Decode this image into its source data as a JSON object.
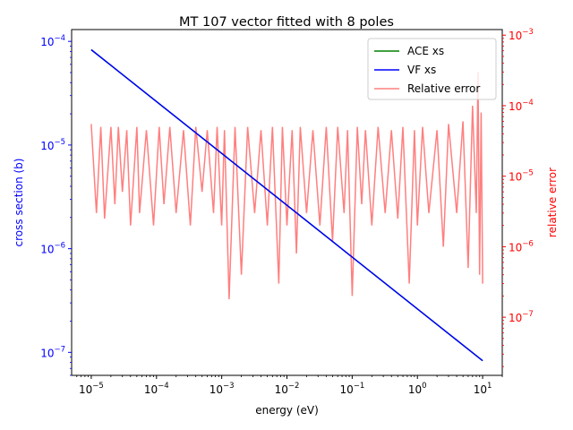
{
  "chart_data": {
    "type": "line",
    "title": "MT 107 vector fitted with 8 poles",
    "xlabel": "energy (eV)",
    "ylabel_left": "cross section (b)",
    "ylabel_right": "relative error",
    "x_scale": "log",
    "y_left_scale": "log",
    "y_right_scale": "log",
    "xlim": [
      5e-06,
      20
    ],
    "ylim_left": [
      6e-08,
      0.00013
    ],
    "ylim_right": [
      1.5e-08,
      0.0012
    ],
    "grid": false,
    "legend_position": "top-right",
    "x_ticks": [
      {
        "value": 1e-05,
        "base": "10",
        "exp": "−5"
      },
      {
        "value": 0.0001,
        "base": "10",
        "exp": "−4"
      },
      {
        "value": 0.001,
        "base": "10",
        "exp": "−3"
      },
      {
        "value": 0.01,
        "base": "10",
        "exp": "−2"
      },
      {
        "value": 0.1,
        "base": "10",
        "exp": "−1"
      },
      {
        "value": 1,
        "base": "10",
        "exp": "0"
      },
      {
        "value": 10,
        "base": "10",
        "exp": "1"
      }
    ],
    "y_left_ticks": [
      {
        "value": 1e-07,
        "base": "10",
        "exp": "−7"
      },
      {
        "value": 1e-06,
        "base": "10",
        "exp": "−6"
      },
      {
        "value": 1e-05,
        "base": "10",
        "exp": "−5"
      },
      {
        "value": 0.0001,
        "base": "10",
        "exp": "−4"
      }
    ],
    "y_right_ticks": [
      {
        "value": 1e-07,
        "base": "10",
        "exp": "−7"
      },
      {
        "value": 1e-06,
        "base": "10",
        "exp": "−6"
      },
      {
        "value": 1e-05,
        "base": "10",
        "exp": "−5"
      },
      {
        "value": 0.0001,
        "base": "10",
        "exp": "−4"
      },
      {
        "value": 0.001,
        "base": "10",
        "exp": "−3"
      }
    ],
    "series": [
      {
        "name": "ACE xs",
        "axis": "left",
        "color": "#008000",
        "x": [
          1e-05,
          10
        ],
        "y": [
          8.3e-05,
          8.3e-08
        ]
      },
      {
        "name": "VF xs",
        "axis": "left",
        "color": "#0000ff",
        "x": [
          1e-05,
          10
        ],
        "y": [
          8.3e-05,
          8.3e-08
        ]
      },
      {
        "name": "Relative error",
        "axis": "right",
        "color": "#ff0000",
        "opacity": 0.5,
        "x": [
          1e-05,
          1.2e-05,
          1.4e-05,
          1.6e-05,
          2e-05,
          2.3e-05,
          2.6e-05,
          3e-05,
          3.5e-05,
          4e-05,
          5e-05,
          5.5e-05,
          7e-05,
          9e-05,
          0.00011,
          0.00013,
          0.00016,
          0.0002,
          0.00026,
          0.00033,
          0.0004,
          0.0005,
          0.0006,
          0.00075,
          0.00085,
          0.001,
          0.0011,
          0.0013,
          0.0016,
          0.002,
          0.0025,
          0.0032,
          0.004,
          0.005,
          0.006,
          0.0075,
          0.0085,
          0.01,
          0.012,
          0.014,
          0.016,
          0.02,
          0.025,
          0.032,
          0.04,
          0.05,
          0.06,
          0.075,
          0.085,
          0.1,
          0.12,
          0.14,
          0.16,
          0.2,
          0.25,
          0.32,
          0.4,
          0.5,
          0.6,
          0.75,
          0.9,
          1,
          1.2,
          1.5,
          2,
          2.5,
          3,
          4,
          5,
          6,
          7,
          8,
          8.5,
          9,
          9.5,
          10
        ],
        "y": [
          5.5e-05,
          3e-06,
          5e-05,
          2.5e-06,
          5e-05,
          4e-06,
          5e-05,
          6e-06,
          4.5e-05,
          2e-06,
          5e-05,
          3e-06,
          4.5e-05,
          2e-06,
          5e-05,
          4e-06,
          5e-05,
          3e-06,
          4.5e-05,
          2e-06,
          5e-05,
          6e-06,
          4.5e-05,
          3e-06,
          5e-05,
          2e-06,
          4.5e-05,
          1.8e-07,
          5e-05,
          4e-07,
          5e-05,
          3e-06,
          4.5e-05,
          2e-06,
          5e-05,
          3e-07,
          5e-05,
          2e-06,
          4.5e-05,
          8e-07,
          5e-05,
          3e-06,
          4.5e-05,
          2e-06,
          5e-05,
          1.2e-06,
          5e-05,
          3e-06,
          4.5e-05,
          2e-07,
          5e-05,
          4e-06,
          4.5e-05,
          2e-06,
          5e-05,
          3e-06,
          4.5e-05,
          2.5e-06,
          5e-05,
          3e-07,
          4.5e-05,
          2e-06,
          5e-05,
          3e-06,
          4.5e-05,
          1e-06,
          5.5e-05,
          3e-06,
          6e-05,
          5e-07,
          0.0001,
          3e-06,
          0.0003,
          4e-07,
          8e-05,
          3e-07
        ]
      }
    ]
  }
}
